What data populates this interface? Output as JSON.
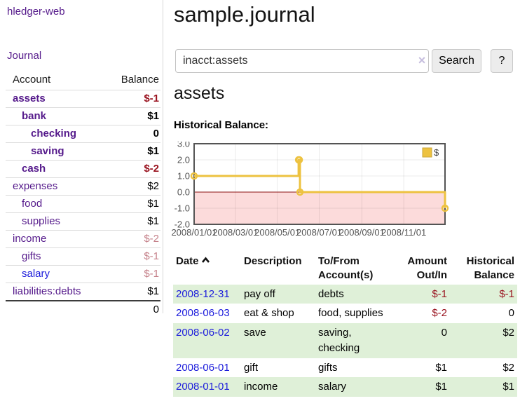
{
  "app": {
    "brand": "hledger-web",
    "nav": {
      "journal": "Journal"
    }
  },
  "sidebar": {
    "columns": {
      "account": "Account",
      "balance": "Balance"
    },
    "rows": [
      {
        "account": "assets",
        "balance": "$-1"
      },
      {
        "account": "bank",
        "balance": "$1"
      },
      {
        "account": "checking",
        "balance": "0"
      },
      {
        "account": "saving",
        "balance": "$1"
      },
      {
        "account": "cash",
        "balance": "$-2"
      },
      {
        "account": "expenses",
        "balance": "$2"
      },
      {
        "account": "food",
        "balance": "$1"
      },
      {
        "account": "supplies",
        "balance": "$1"
      },
      {
        "account": "income",
        "balance": "$-2"
      },
      {
        "account": "gifts",
        "balance": "$-1"
      },
      {
        "account": "salary",
        "balance": "$-1"
      },
      {
        "account": "liabilities:debts",
        "balance": "$1"
      }
    ],
    "total": "0"
  },
  "header": {
    "title": "sample.journal"
  },
  "search": {
    "value": "inacct:assets",
    "clear_icon": "×",
    "button_label": "Search",
    "help_label": "?"
  },
  "account_page": {
    "title": "assets",
    "chart_label": "Historical Balance:"
  },
  "chart_data": {
    "type": "line",
    "title": "Historical Balance",
    "step": true,
    "series": [
      {
        "name": "$",
        "color": "#edc240",
        "points": [
          [
            "2008-01-01",
            1
          ],
          [
            "2008-06-01",
            2
          ],
          [
            "2008-06-02",
            2
          ],
          [
            "2008-06-03",
            0
          ],
          [
            "2008-12-31",
            -1
          ]
        ]
      }
    ],
    "x_ticks": [
      "2008/01/01",
      "2008/03/01",
      "2008/05/01",
      "2008/07/01",
      "2008/09/01",
      "2008/11/01"
    ],
    "y_ticks": [
      3.0,
      2.0,
      1.0,
      0.0,
      -1.0,
      -2.0
    ],
    "xlim": [
      "2008-01-01",
      "2008-12-31"
    ],
    "ylim": [
      -2,
      3
    ],
    "grid": true,
    "negative_region_color": "#fcdbdb",
    "zero_line_color": "#8b1010",
    "axis_text_color": "#545454",
    "legend": {
      "label": "$",
      "position": "top-right"
    }
  },
  "register": {
    "columns": {
      "date": "Date",
      "description": "Description",
      "accounts": "To/From Account(s)",
      "amount": "Amount Out/In",
      "balance": "Historical Balance"
    },
    "rows": [
      {
        "date": "2008-12-31",
        "description": "pay off",
        "accounts": "debts",
        "amount": "$-1",
        "balance": "$-1"
      },
      {
        "date": "2008-06-03",
        "description": "eat & shop",
        "accounts": "food, supplies",
        "amount": "$-2",
        "balance": "0"
      },
      {
        "date": "2008-06-02",
        "description": "save",
        "accounts": "saving, checking",
        "amount": "0",
        "balance": "$2"
      },
      {
        "date": "2008-06-01",
        "description": "gift",
        "accounts": "gifts",
        "amount": "$1",
        "balance": "$2"
      },
      {
        "date": "2008-01-01",
        "description": "income",
        "accounts": "salary",
        "amount": "$1",
        "balance": "$1"
      }
    ]
  }
}
